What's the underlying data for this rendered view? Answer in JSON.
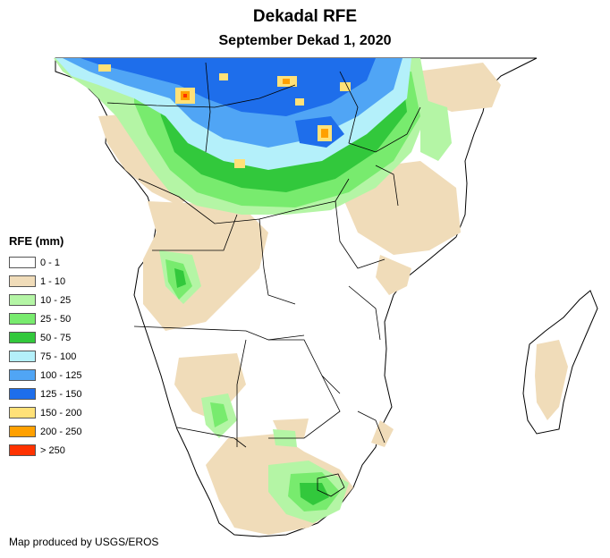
{
  "title": "Dekadal RFE",
  "subtitle": "September Dekad 1, 2020",
  "legend": {
    "title": "RFE (mm)",
    "items": [
      {
        "label": "0 - 1",
        "color": "#ffffff"
      },
      {
        "label": "1 - 10",
        "color": "#f0dcb9"
      },
      {
        "label": "10 - 25",
        "color": "#b4f5a5"
      },
      {
        "label": "25 - 50",
        "color": "#78eb6e"
      },
      {
        "label": "50 - 75",
        "color": "#32c83c"
      },
      {
        "label": "75 - 100",
        "color": "#b4f0fa"
      },
      {
        "label": "100 - 125",
        "color": "#50a5f5"
      },
      {
        "label": "125 - 150",
        "color": "#1e6eeb"
      },
      {
        "label": "150 - 200",
        "color": "#ffe178"
      },
      {
        "label": "200 - 250",
        "color": "#ffa000"
      },
      {
        "label": "> 250",
        "color": "#ff3200"
      }
    ]
  },
  "credit": "Map produced by USGS/EROS"
}
